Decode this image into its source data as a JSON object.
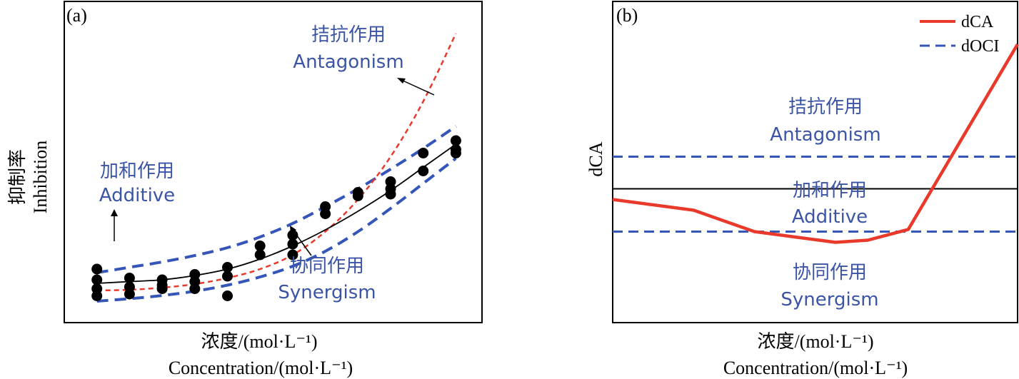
{
  "colors": {
    "blue_text": "#3b54a6",
    "blue_dash": "#3556b8",
    "red": "#e8392b",
    "black": "#000000"
  },
  "panel_a": {
    "tag": "(a)",
    "ylabel_cn": "抑制率",
    "ylabel_en": "Inhibition",
    "xlabel_cn": "浓度/(mol·L⁻¹)",
    "xlabel_en": "Concentration/(mol·L⁻¹)",
    "annotations": {
      "antagonism_cn": "拮抗作用",
      "antagonism_en": "Antagonism",
      "additive_cn": "加和作用",
      "additive_en": "Additive",
      "synergism_cn": "协同作用",
      "synergism_en": "Synergism"
    }
  },
  "panel_b": {
    "tag": "(b)",
    "ylabel": "dCA",
    "xlabel_cn": "浓度/(mol·L⁻¹)",
    "xlabel_en": "Concentration/(mol·L⁻¹)",
    "legend": [
      "dCA",
      "dOCI"
    ],
    "annotations": {
      "antagonism_cn": "拮抗作用",
      "antagonism_en": "Antagonism",
      "additive_cn": "加和作用",
      "additive_en": "Additive",
      "synergism_cn": "协同作用",
      "synergism_en": "Synergism"
    }
  },
  "chart_data": [
    {
      "type": "scatter",
      "panel": "a",
      "x": [
        1,
        2,
        3,
        4,
        5,
        6,
        7,
        8,
        9,
        10,
        11,
        12
      ],
      "points": [
        [
          1,
          1.5
        ],
        [
          1,
          1.2
        ],
        [
          1,
          0.95
        ],
        [
          1,
          0.75
        ],
        [
          2,
          1.25
        ],
        [
          2,
          1.0
        ],
        [
          2,
          0.8
        ],
        [
          3,
          1.2
        ],
        [
          3,
          1.05
        ],
        [
          3,
          0.95
        ],
        [
          4,
          1.35
        ],
        [
          4,
          1.15
        ],
        [
          4,
          0.95
        ],
        [
          5,
          1.55
        ],
        [
          5,
          1.3
        ],
        [
          5,
          0.75
        ],
        [
          6,
          2.15
        ],
        [
          6,
          1.9
        ],
        [
          7,
          2.45
        ],
        [
          7,
          2.2
        ],
        [
          7,
          1.9
        ],
        [
          8,
          3.25
        ],
        [
          8,
          3.05
        ],
        [
          9,
          3.65
        ],
        [
          9,
          3.55
        ],
        [
          10,
          3.95
        ],
        [
          10,
          3.75
        ],
        [
          10,
          3.6
        ],
        [
          11,
          4.75
        ],
        [
          11,
          4.25
        ],
        [
          12,
          5.1
        ],
        [
          12,
          4.85
        ],
        [
          12,
          4.75
        ]
      ],
      "fit_black": [
        [
          1,
          1.1
        ],
        [
          2,
          1.15
        ],
        [
          3,
          1.2
        ],
        [
          4,
          1.32
        ],
        [
          5,
          1.5
        ],
        [
          6,
          1.78
        ],
        [
          7,
          2.15
        ],
        [
          8,
          2.6
        ],
        [
          9,
          3.12
        ],
        [
          10,
          3.7
        ],
        [
          11,
          4.35
        ],
        [
          12,
          5.0
        ]
      ],
      "upper_blue_dash": [
        [
          1,
          1.4
        ],
        [
          2,
          1.55
        ],
        [
          3,
          1.7
        ],
        [
          4,
          1.88
        ],
        [
          5,
          2.1
        ],
        [
          6,
          2.4
        ],
        [
          7,
          2.78
        ],
        [
          8,
          3.25
        ],
        [
          9,
          3.75
        ],
        [
          10,
          4.3
        ],
        [
          11,
          4.88
        ],
        [
          12,
          5.5
        ]
      ],
      "lower_blue_dash": [
        [
          1,
          0.6
        ],
        [
          2,
          0.67
        ],
        [
          3,
          0.76
        ],
        [
          4,
          0.88
        ],
        [
          5,
          1.05
        ],
        [
          6,
          1.28
        ],
        [
          7,
          1.58
        ],
        [
          8,
          2.0
        ],
        [
          9,
          2.55
        ],
        [
          10,
          3.2
        ],
        [
          11,
          3.9
        ],
        [
          12,
          4.6
        ]
      ],
      "red_dash": [
        [
          1,
          0.9
        ],
        [
          2,
          0.92
        ],
        [
          3,
          0.98
        ],
        [
          4,
          1.08
        ],
        [
          5,
          1.25
        ],
        [
          6,
          1.5
        ],
        [
          7,
          1.9
        ],
        [
          8,
          2.55
        ],
        [
          9,
          3.45
        ],
        [
          10,
          4.65
        ],
        [
          11,
          6.2
        ],
        [
          12,
          8.1
        ]
      ],
      "xlim": [
        0,
        12.8
      ],
      "ylim": [
        0,
        9
      ]
    },
    {
      "type": "line",
      "panel": "b",
      "series": [
        {
          "name": "dCA",
          "points": [
            [
              0,
              0.15
            ],
            [
              2,
              0.05
            ],
            [
              3.5,
              -0.15
            ],
            [
              5.5,
              -0.25
            ],
            [
              6.3,
              -0.23
            ],
            [
              7.3,
              -0.13
            ],
            [
              10,
              1.6
            ]
          ]
        },
        {
          "name": "dOCI",
          "upper": 0.55,
          "lower": -0.15
        }
      ],
      "baseline": 0.25,
      "xlim": [
        0,
        10
      ],
      "ylim": [
        -1.0,
        2.0
      ]
    }
  ]
}
